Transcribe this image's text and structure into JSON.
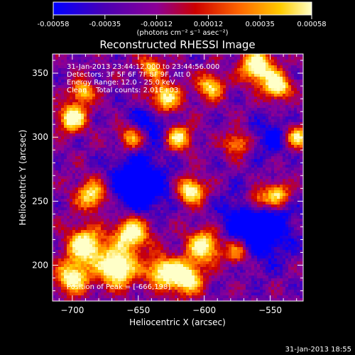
{
  "chart_data": {
    "type": "heatmap",
    "title": "Reconstructed RHESSI Image",
    "xlabel": "Heliocentric X (arcsec)",
    "ylabel": "Heliocentric Y (arcsec)",
    "xlim": [
      -715,
      -525
    ],
    "ylim": [
      172,
      365
    ],
    "xticks": [
      -700,
      -650,
      -600,
      -550
    ],
    "yticks": [
      200,
      250,
      300,
      350
    ],
    "colorbar": {
      "ticks": [
        "-0.00058",
        "-0.00035",
        "-0.00012",
        "0.00012",
        "0.00035",
        "0.00058"
      ],
      "range": [
        -0.00058,
        0.00058
      ],
      "unit_label": "(photons cm⁻² s⁻¹ asec⁻²)",
      "colors": [
        "#0000ff",
        "#4b00b4",
        "#8c0096",
        "#cc0000",
        "#ff6600",
        "#ffcc00",
        "#ffffc8"
      ]
    },
    "annotations": [
      "31-Jan-2013 23:44:12.000 to 23:44:56.000",
      "Detectors: 3F 5F 6F 7F 8F 9F, Att 0",
      "Energy Range: 12.0 - 25.0 keV",
      "Clean    Total counts: 2.01E+03"
    ],
    "peak_label": "Position of Peak = [-666,198]",
    "peak_position": [
      -666,
      198
    ],
    "timestamp": "31-Jan-2013 18:55"
  }
}
